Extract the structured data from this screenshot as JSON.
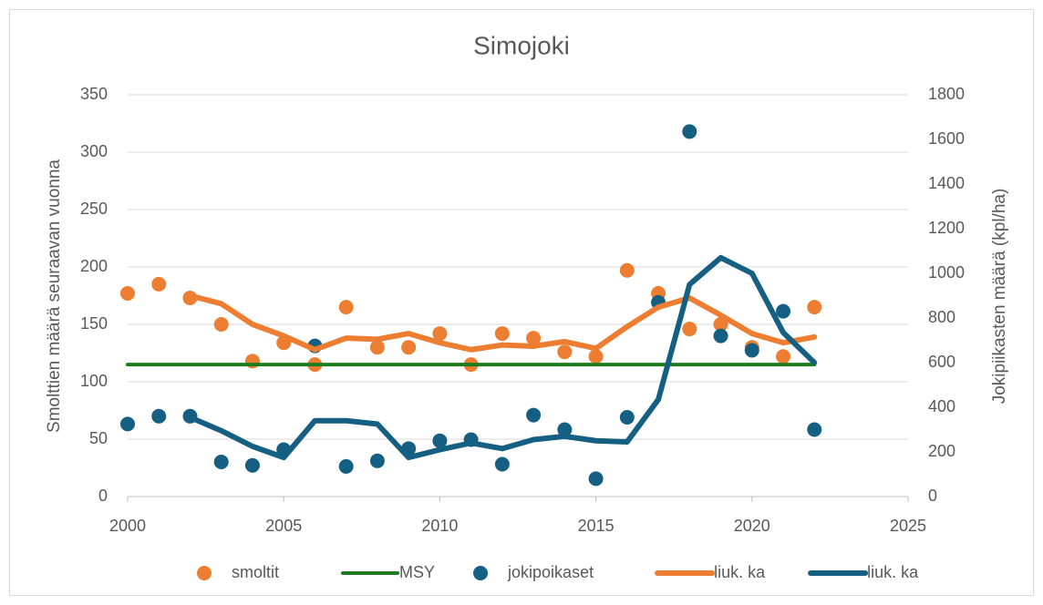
{
  "chart_data": {
    "type": "line",
    "title": "Simojoki",
    "y_label": "Smolttien määrä seuraavan vuonna",
    "y2_label": "Jokipiikasten määrä (kpl/ha)",
    "x": [
      2000,
      2001,
      2002,
      2003,
      2004,
      2005,
      2006,
      2007,
      2008,
      2009,
      2010,
      2011,
      2012,
      2013,
      2014,
      2015,
      2016,
      2017,
      2018,
      2019,
      2020,
      2021,
      2022
    ],
    "xlim": [
      2000,
      2025
    ],
    "xticks": [
      2000,
      2005,
      2010,
      2015,
      2020,
      2025
    ],
    "ylim": [
      0,
      350
    ],
    "yticks": [
      0,
      50,
      100,
      150,
      200,
      250,
      300,
      350
    ],
    "y2lim": [
      0,
      1800
    ],
    "y2ticks": [
      0,
      200,
      400,
      600,
      800,
      1000,
      1200,
      1400,
      1600,
      1800
    ],
    "grid": true,
    "legend": "bottom",
    "series": [
      {
        "name": "smoltit",
        "color": "#ed7d31",
        "mark": "dot",
        "values": [
          177,
          185,
          173,
          150,
          118,
          134,
          115,
          165,
          130,
          130,
          142,
          115,
          142,
          138,
          126,
          122,
          197,
          177,
          146,
          150,
          130,
          122,
          165
        ]
      },
      {
        "name": "MSY",
        "color": "#1e7b1e",
        "mark": "line",
        "values": [
          115,
          115,
          115,
          115,
          115,
          115,
          115,
          115,
          115,
          115,
          115,
          115,
          115,
          115,
          115,
          115,
          115,
          115,
          115,
          115,
          115,
          115,
          115
        ]
      },
      {
        "name": "jokipoikaset",
        "color": "#156082",
        "mark": "dot",
        "axis": "y2",
        "values": [
          325,
          360,
          360,
          155,
          140,
          210,
          675,
          135,
          160,
          215,
          250,
          255,
          145,
          365,
          300,
          80,
          355,
          870,
          1635,
          720,
          655,
          830,
          300
        ]
      },
      {
        "name": "liuk. ka",
        "color": "#ed7d31",
        "mark": "line",
        "values": [
          null,
          null,
          175,
          168,
          150,
          140,
          128,
          138,
          137,
          142,
          134,
          128,
          132,
          131,
          135,
          129,
          148,
          165,
          173,
          158,
          142,
          134,
          139
        ]
      },
      {
        "name": "liuk. ka",
        "color": "#156082",
        "mark": "line",
        "axis": "y2",
        "values": [
          null,
          null,
          355,
          295,
          225,
          175,
          340,
          340,
          325,
          175,
          210,
          240,
          215,
          255,
          270,
          250,
          245,
          435,
          950,
          1070,
          1000,
          735,
          600
        ]
      }
    ]
  }
}
